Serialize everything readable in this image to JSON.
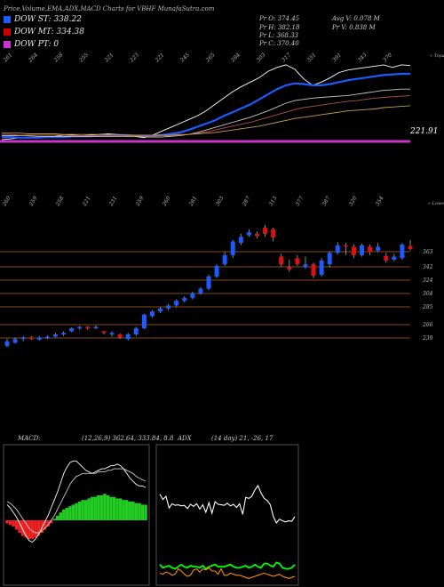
{
  "title": "Price,Volume,EMA,ADX,MACD Charts for VBHF MunafaSutra.com",
  "legend": [
    {
      "label": "DOW ST: 338.22",
      "color": "#1e5bff"
    },
    {
      "label": "DOW MT: 334.38",
      "color": "#cc0000"
    },
    {
      "label": "DOW PT: 0",
      "color": "#cc33cc"
    }
  ],
  "stats": {
    "open": "Pr O: 374.45",
    "high": "Pr H: 382.18",
    "low": "Pr L: 368.33",
    "close": "Pr C: 370.40",
    "avgvol": "Avg V: 0.078 M",
    "vol": "Pr V: 0.838 M"
  },
  "panel1": {
    "top_ticks": [
      "261",
      "264",
      "258",
      "255",
      "221",
      "223",
      "221",
      "245",
      "265",
      "284",
      "303",
      "317",
      "351",
      "391",
      "343",
      "370"
    ],
    "right_label": "« Topa",
    "level_label": "221.91"
  },
  "panel2": {
    "top_ticks": [
      "260",
      "259",
      "258",
      "221",
      "231",
      "259",
      "260",
      "281",
      "303",
      "287",
      "313",
      "377",
      "387",
      "320",
      "354"
    ],
    "right_label": "« Lowes"
  },
  "chart_data": [
    {
      "type": "line",
      "name": "ema",
      "x": [
        1,
        2,
        3,
        4,
        5,
        6,
        7,
        8,
        9,
        10,
        11,
        12,
        13,
        14,
        15,
        16,
        17,
        18,
        19,
        20,
        21,
        22,
        23,
        24,
        25,
        26,
        27,
        28,
        29,
        30,
        31,
        32,
        33,
        34,
        35,
        36,
        37,
        38,
        39,
        40,
        41,
        42,
        43,
        44,
        45,
        46,
        47
      ],
      "series": [
        {
          "values": [
            255,
            256,
            258,
            259,
            258,
            259,
            260,
            262,
            262,
            261,
            262,
            263,
            264,
            263,
            262,
            260,
            258,
            262,
            268,
            274,
            280,
            286,
            292,
            300,
            310,
            320,
            330,
            338,
            345,
            352,
            362,
            368,
            372,
            365,
            350,
            340,
            345,
            352,
            360,
            364,
            366,
            368,
            370,
            372,
            368,
            372,
            371
          ],
          "color": "#ffffff"
        },
        {
          "values": [
            259,
            259,
            258,
            258,
            258,
            259,
            259,
            259,
            260,
            260,
            260,
            261,
            261,
            262,
            262,
            261,
            261,
            261,
            262,
            264,
            266,
            270,
            275,
            280,
            285,
            292,
            298,
            304,
            310,
            318,
            326,
            334,
            340,
            343,
            342,
            340,
            340,
            342,
            345,
            348,
            350,
            352,
            354,
            356,
            357,
            358,
            358
          ],
          "color": "#1e5bff"
        },
        {
          "values": [
            261,
            261,
            261,
            261,
            260,
            260,
            260,
            260,
            260,
            260,
            260,
            260,
            260,
            260,
            260,
            260,
            259,
            259,
            259,
            260,
            261,
            263,
            266,
            270,
            274,
            278,
            282,
            286,
            290,
            295,
            300,
            306,
            312,
            316,
            318,
            320,
            321,
            322,
            323,
            324,
            326,
            328,
            330,
            332,
            333,
            334,
            334
          ],
          "color": "#c8c8c8"
        },
        {
          "values": [
            263,
            263,
            262,
            262,
            262,
            262,
            262,
            262,
            261,
            261,
            261,
            261,
            261,
            261,
            261,
            261,
            261,
            261,
            261,
            261,
            262,
            263,
            265,
            267,
            270,
            273,
            276,
            279,
            282,
            286,
            290,
            294,
            298,
            302,
            305,
            307,
            309,
            311,
            313,
            315,
            316,
            318,
            320,
            321,
            322,
            323,
            324
          ],
          "color": "#b05050"
        },
        {
          "values": [
            265,
            265,
            265,
            264,
            264,
            264,
            264,
            263,
            263,
            263,
            263,
            263,
            263,
            263,
            262,
            262,
            262,
            262,
            262,
            262,
            263,
            263,
            264,
            265,
            266,
            268,
            270,
            272,
            274,
            276,
            279,
            282,
            285,
            288,
            290,
            292,
            294,
            296,
            298,
            300,
            301,
            302,
            303,
            305,
            306,
            307,
            308
          ],
          "color": "#c8a040"
        }
      ],
      "reference_level": 221.91,
      "ylim": [
        195,
        390
      ]
    },
    {
      "type": "candlestick",
      "name": "price",
      "candles": [
        [
          1,
          243,
          249,
          241,
          252
        ],
        [
          2,
          247,
          252,
          246,
          254
        ],
        [
          3,
          252,
          254,
          249,
          256
        ],
        [
          4,
          254,
          252,
          251,
          256
        ],
        [
          5,
          251,
          254,
          250,
          256
        ],
        [
          6,
          254,
          255,
          252,
          257
        ],
        [
          7,
          255,
          258,
          254,
          260
        ],
        [
          8,
          258,
          260,
          256,
          262
        ],
        [
          9,
          262,
          266,
          261,
          267
        ],
        [
          10,
          266,
          268,
          264,
          269
        ],
        [
          11,
          268,
          266,
          264,
          269
        ],
        [
          12,
          266,
          268,
          265,
          270
        ],
        [
          13,
          262,
          260,
          258,
          263
        ],
        [
          14,
          258,
          260,
          255,
          262
        ],
        [
          15,
          258,
          254,
          252,
          259
        ],
        [
          16,
          252,
          258,
          250,
          260
        ],
        [
          17,
          258,
          266,
          256,
          268
        ],
        [
          18,
          266,
          284,
          265,
          285
        ],
        [
          19,
          282,
          288,
          280,
          290
        ],
        [
          20,
          288,
          292,
          286,
          294
        ],
        [
          21,
          292,
          296,
          290,
          298
        ],
        [
          22,
          296,
          302,
          294,
          304
        ],
        [
          23,
          302,
          306,
          300,
          308
        ],
        [
          24,
          306,
          312,
          304,
          314
        ],
        [
          25,
          312,
          318,
          310,
          320
        ],
        [
          26,
          318,
          334,
          316,
          336
        ],
        [
          27,
          334,
          348,
          332,
          350
        ],
        [
          28,
          350,
          362,
          348,
          366
        ],
        [
          29,
          362,
          380,
          358,
          382
        ],
        [
          30,
          378,
          386,
          375,
          390
        ],
        [
          31,
          388,
          392,
          386,
          396
        ],
        [
          32,
          390,
          387,
          384,
          393
        ],
        [
          33,
          398,
          390,
          386,
          402
        ],
        [
          34,
          396,
          385,
          380,
          398
        ],
        [
          35,
          360,
          350,
          347,
          364
        ],
        [
          36,
          346,
          343,
          340,
          356
        ],
        [
          37,
          358,
          350,
          348,
          362
        ],
        [
          38,
          346,
          350,
          344,
          360
        ],
        [
          39,
          350,
          335,
          332,
          352
        ],
        [
          40,
          336,
          355,
          334,
          358
        ],
        [
          41,
          350,
          365,
          346,
          367
        ],
        [
          42,
          365,
          375,
          363,
          379
        ],
        [
          43,
          375,
          374,
          362,
          378
        ],
        [
          44,
          373,
          362,
          358,
          376
        ],
        [
          45,
          362,
          375,
          360,
          377
        ],
        [
          46,
          373,
          366,
          362,
          376
        ],
        [
          47,
          368,
          373,
          366,
          378
        ],
        [
          48,
          361,
          355,
          352,
          365
        ],
        [
          49,
          356,
          360,
          354,
          364
        ],
        [
          50,
          358,
          376,
          356,
          378
        ],
        [
          51,
          374,
          370,
          368,
          382
        ]
      ],
      "right_ticks": [
        363,
        342,
        324,
        304,
        285,
        266,
        239
      ],
      "ylim": [
        230,
        405
      ]
    },
    {
      "type": "bar",
      "name": "macd",
      "label": "MACD:",
      "params": "(12,26,9) 362.64, 333.84, 8.8",
      "values": [
        -2,
        -3,
        -4,
        -6,
        -8,
        -10,
        -11,
        -12,
        -12,
        -11,
        -10,
        -8,
        -6,
        -4,
        -2,
        1,
        3,
        5,
        7,
        8,
        9,
        10,
        11,
        12,
        13,
        13,
        14,
        15,
        15,
        16,
        16,
        17,
        16,
        15,
        15,
        14,
        14,
        13,
        13,
        12,
        12,
        11,
        11,
        10,
        10
      ],
      "macd_line": [
        10,
        8,
        5,
        2,
        -2,
        -6,
        -10,
        -13,
        -14,
        -12,
        -9,
        -5,
        -1,
        3,
        8,
        13,
        18,
        24,
        30,
        34,
        37,
        38,
        38,
        36,
        34,
        32,
        31,
        30,
        31,
        32,
        33,
        33,
        34,
        35,
        35,
        36,
        35,
        33,
        30,
        27,
        25,
        23,
        22,
        22,
        21
      ],
      "signal_line": [
        12,
        11,
        9,
        7,
        4,
        1,
        -2,
        -5,
        -7,
        -8,
        -8,
        -7,
        -5,
        -3,
        0,
        3,
        7,
        11,
        15,
        19,
        23,
        26,
        28,
        29,
        30,
        30,
        30,
        30,
        30,
        31,
        31,
        31,
        32,
        32,
        33,
        33,
        33,
        33,
        32,
        31,
        30,
        28,
        27,
        26,
        25
      ],
      "ylim": [
        -35,
        55
      ]
    },
    {
      "type": "line",
      "name": "adx",
      "label": "ADX",
      "params": "(14 day) 21, -26, 17",
      "series": [
        {
          "values": [
            74,
            64,
            70,
            48,
            56,
            53,
            54,
            52,
            53,
            47,
            55,
            51,
            56,
            46,
            54,
            40,
            58,
            38,
            60,
            55,
            54,
            53,
            57,
            52,
            55,
            49,
            56,
            36,
            68,
            66,
            70,
            82,
            90,
            76,
            66,
            62,
            54,
            32,
            20,
            27,
            24,
            22,
            24,
            23,
            32
          ],
          "color": "#ffffff"
        },
        {
          "values": [
            -58,
            -64,
            -62,
            -60,
            -64,
            -66,
            -62,
            -58,
            -62,
            -64,
            -60,
            -62,
            -62,
            -64,
            -60,
            -66,
            -62,
            -60,
            -58,
            -62,
            -62,
            -62,
            -60,
            -58,
            -62,
            -64,
            -64,
            -62,
            -60,
            -64,
            -62,
            -58,
            -62,
            -64,
            -56,
            -56,
            -60,
            -62,
            -54,
            -56,
            -64,
            -66,
            -66,
            -64,
            -58
          ],
          "color": "#00ff00"
        },
        {
          "values": [
            -74,
            -76,
            -72,
            -74,
            -78,
            -76,
            -66,
            -70,
            -76,
            -80,
            -78,
            -68,
            -66,
            -72,
            -66,
            -68,
            -64,
            -70,
            -70,
            -76,
            -66,
            -78,
            -78,
            -74,
            -76,
            -78,
            -78,
            -80,
            -82,
            -84,
            -82,
            -80,
            -78,
            -76,
            -74,
            -76,
            -78,
            -80,
            -78,
            -76,
            -80,
            -82,
            -84,
            -82,
            -80
          ],
          "color": "#ff8c00"
        }
      ],
      "ylim": [
        -95,
        105
      ]
    }
  ]
}
